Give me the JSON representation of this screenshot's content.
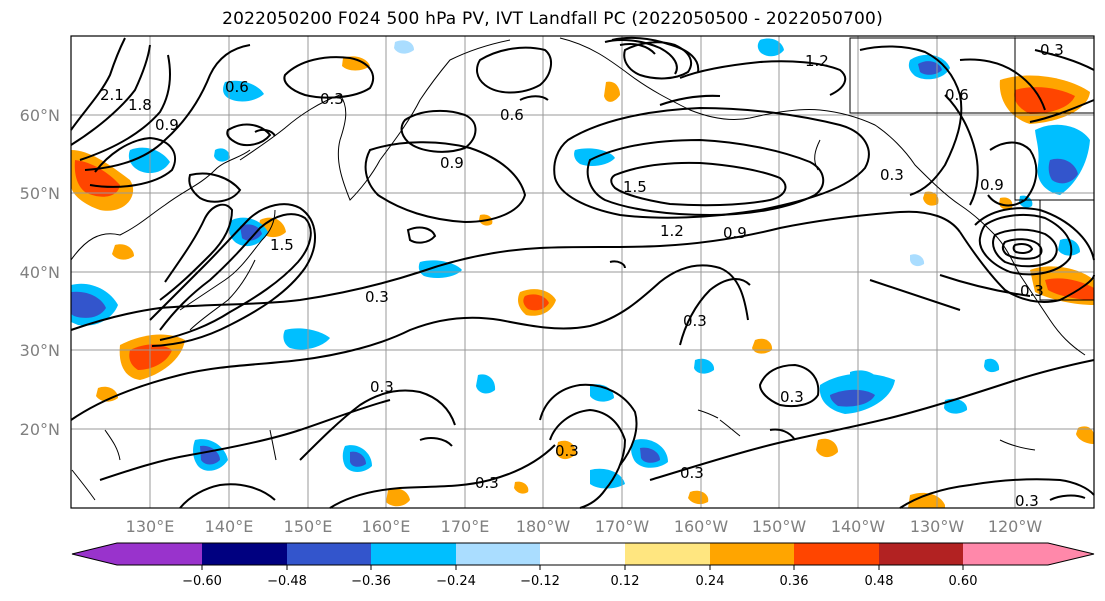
{
  "title": "2022050200 F024 500 hPa PV, IVT Landfall PC (2022050500 - 2022050700)",
  "lat_labels": [
    "60°N",
    "50°N",
    "40°N",
    "30°N",
    "20°N"
  ],
  "lon_labels": [
    "130°E",
    "140°E",
    "150°E",
    "160°E",
    "170°E",
    "180°W",
    "170°W",
    "160°W",
    "150°W",
    "140°W",
    "130°W",
    "120°W"
  ],
  "contour_labels": [
    "0.3",
    "0.6",
    "0.9",
    "1.2",
    "1.5",
    "1.8",
    "2.1"
  ],
  "colorbar": {
    "ticks": [
      "−0.60",
      "−0.48",
      "−0.36",
      "−0.24",
      "−0.12",
      "0.12",
      "0.24",
      "0.36",
      "0.48",
      "0.60"
    ],
    "colors": [
      "#9933cc",
      "#000080",
      "#3355cc",
      "#00bfff",
      "#aaddff",
      "#ffffff",
      "#ffe680",
      "#ffa500",
      "#ff4500",
      "#b22222",
      "#ff88aa"
    ]
  },
  "shading_colors": {
    "neg_strong": "#3355cc",
    "neg_mid": "#00bfff",
    "neg_weak": "#aaddff",
    "pos_weak": "#ffe680",
    "pos_mid": "#ffa500",
    "pos_strong": "#ff4500"
  }
}
